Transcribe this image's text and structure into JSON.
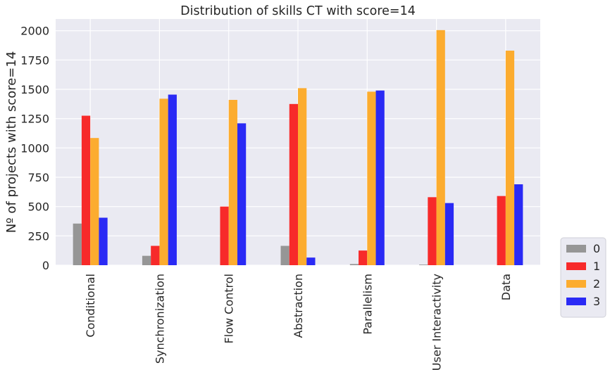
{
  "chart_data": {
    "type": "bar",
    "title": "Distribution of skills CT with score=14",
    "xlabel": "",
    "ylabel": "Nº of projects with score=14",
    "ylim": [
      0,
      2100
    ],
    "yticks": [
      0,
      250,
      500,
      750,
      1000,
      1250,
      1500,
      1750,
      2000
    ],
    "grid": true,
    "legend_position": "right",
    "categories": [
      "Conditional",
      "Synchronization",
      "Flow Control",
      "Abstraction",
      "Parallelism",
      "User Interactivity",
      "Data"
    ],
    "series": [
      {
        "name": "0",
        "color": "#969696",
        "values": [
          355,
          80,
          0,
          165,
          10,
          5,
          0
        ]
      },
      {
        "name": "1",
        "color": "#f72a2a",
        "values": [
          1275,
          165,
          500,
          1375,
          125,
          580,
          590
        ]
      },
      {
        "name": "2",
        "color": "#fcac2f",
        "values": [
          1085,
          1420,
          1410,
          1510,
          1480,
          2005,
          1830
        ]
      },
      {
        "name": "3",
        "color": "#2a2af5",
        "values": [
          405,
          1455,
          1210,
          65,
          1490,
          530,
          690
        ]
      }
    ]
  }
}
